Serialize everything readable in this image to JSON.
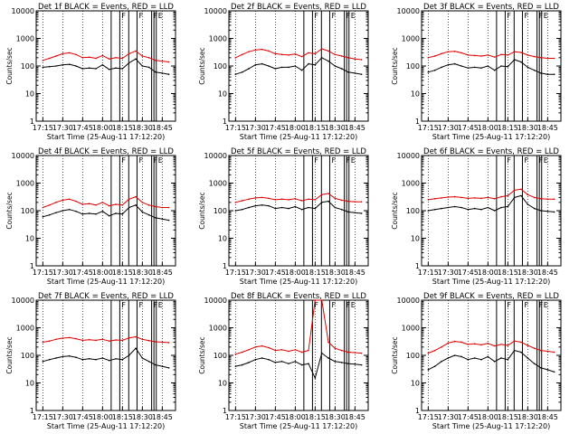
{
  "figure": {
    "colors": {
      "events": "#000000",
      "lld": "#dd0000",
      "axes": "#000000"
    }
  },
  "chart_data": [
    {
      "type": "line",
      "yscale": "log",
      "grid": "vertical dotted",
      "title": "Det 1f BLACK = Events, RED = LLD",
      "xlabel": "Start Time (25-Aug-11 17:12:20)",
      "ylabel": "Counts/sec",
      "xticks": [
        "17:15",
        "17:30",
        "17:45",
        "18:00",
        "18:15",
        "18:30",
        "18:45"
      ],
      "yticks": [
        "1",
        "10",
        "100",
        "1000",
        "10000"
      ],
      "xlim": [
        -2,
        40
      ],
      "ylim": [
        1,
        10000
      ],
      "vlines": [
        20.6,
        23.2,
        25.9,
        28.4,
        32.8,
        33.5,
        34.2
      ],
      "markers": [
        "F",
        "F",
        "F",
        "E"
      ],
      "x": [
        0,
        2,
        4,
        6,
        8,
        10,
        12,
        14,
        16,
        18,
        20,
        22,
        24,
        26,
        28,
        30,
        32,
        34,
        36,
        38
      ],
      "series": [
        {
          "name": "Events",
          "values": [
            90,
            95,
            100,
            110,
            115,
            100,
            80,
            85,
            80,
            110,
            75,
            85,
            80,
            130,
            180,
            100,
            90,
            60,
            55,
            50
          ]
        },
        {
          "name": "LLD",
          "values": [
            160,
            190,
            230,
            280,
            300,
            260,
            200,
            210,
            190,
            240,
            180,
            200,
            190,
            280,
            350,
            230,
            200,
            160,
            150,
            140
          ]
        }
      ]
    },
    {
      "type": "line",
      "yscale": "log",
      "grid": "vertical dotted",
      "title": "Det 2f BLACK = Events, RED = LLD",
      "xlabel": "Start Time (25-Aug-11 17:12:20)",
      "ylabel": "Counts/sec",
      "xticks": [
        "17:15",
        "17:30",
        "17:45",
        "18:00",
        "18:15",
        "18:30",
        "18:45"
      ],
      "yticks": [
        "1",
        "10",
        "100",
        "1000",
        "10000"
      ],
      "xlim": [
        -2,
        40
      ],
      "ylim": [
        1,
        10000
      ],
      "vlines": [
        20.6,
        23.2,
        25.9,
        28.4,
        32.8,
        33.5,
        34.2
      ],
      "markers": [
        "F",
        "F",
        "F",
        "E"
      ],
      "x": [
        0,
        2,
        4,
        6,
        8,
        10,
        12,
        14,
        16,
        18,
        20,
        22,
        24,
        26,
        28,
        30,
        32,
        34,
        36,
        38
      ],
      "series": [
        {
          "name": "Events",
          "values": [
            50,
            60,
            80,
            110,
            120,
            100,
            80,
            90,
            90,
            100,
            70,
            120,
            110,
            200,
            150,
            100,
            80,
            60,
            55,
            50
          ]
        },
        {
          "name": "LLD",
          "values": [
            200,
            260,
            330,
            380,
            400,
            350,
            280,
            260,
            250,
            270,
            220,
            300,
            280,
            420,
            350,
            260,
            230,
            200,
            180,
            170
          ]
        }
      ]
    },
    {
      "type": "line",
      "yscale": "log",
      "grid": "vertical dotted",
      "title": "Det 3f BLACK = Events, RED = LLD",
      "xlabel": "Start Time (25-Aug-11 17:12:20)",
      "ylabel": "Counts/sec",
      "xticks": [
        "17:15",
        "17:30",
        "17:45",
        "18:00",
        "18:15",
        "18:30",
        "18:45"
      ],
      "yticks": [
        "1",
        "10",
        "100",
        "1000",
        "10000"
      ],
      "xlim": [
        -2,
        40
      ],
      "ylim": [
        1,
        10000
      ],
      "vlines": [
        20.6,
        23.2,
        25.9,
        28.4,
        32.8,
        33.5,
        34.2
      ],
      "markers": [
        "F",
        "F",
        "F",
        "E"
      ],
      "x": [
        0,
        2,
        4,
        6,
        8,
        10,
        12,
        14,
        16,
        18,
        20,
        22,
        24,
        26,
        28,
        30,
        32,
        34,
        36,
        38
      ],
      "series": [
        {
          "name": "Events",
          "values": [
            60,
            70,
            90,
            110,
            120,
            100,
            85,
            90,
            85,
            100,
            70,
            100,
            95,
            170,
            140,
            90,
            70,
            55,
            50,
            50
          ]
        },
        {
          "name": "LLD",
          "values": [
            200,
            230,
            280,
            330,
            340,
            300,
            250,
            240,
            230,
            250,
            210,
            260,
            250,
            330,
            310,
            250,
            220,
            200,
            190,
            190
          ]
        }
      ]
    },
    {
      "type": "line",
      "yscale": "log",
      "grid": "vertical dotted",
      "title": "Det 4f BLACK = Events, RED = LLD",
      "xlabel": "Start Time (25-Aug-11 17:12:20)",
      "ylabel": "Counts/sec",
      "xticks": [
        "17:15",
        "17:30",
        "17:45",
        "18:00",
        "18:15",
        "18:30",
        "18:45"
      ],
      "yticks": [
        "1",
        "10",
        "100",
        "1000",
        "10000"
      ],
      "xlim": [
        -2,
        40
      ],
      "ylim": [
        1,
        10000
      ],
      "vlines": [
        20.6,
        23.2,
        25.9,
        28.4,
        32.8,
        33.5,
        34.2
      ],
      "markers": [
        "F",
        "F",
        "F",
        "E"
      ],
      "x": [
        0,
        2,
        4,
        6,
        8,
        10,
        12,
        14,
        16,
        18,
        20,
        22,
        24,
        26,
        28,
        30,
        32,
        34,
        36,
        38
      ],
      "series": [
        {
          "name": "Events",
          "values": [
            60,
            70,
            85,
            100,
            110,
            95,
            75,
            80,
            75,
            95,
            65,
            80,
            75,
            130,
            160,
            90,
            70,
            55,
            50,
            45
          ]
        },
        {
          "name": "LLD",
          "values": [
            130,
            160,
            200,
            240,
            260,
            220,
            170,
            180,
            160,
            200,
            150,
            170,
            160,
            260,
            320,
            200,
            160,
            140,
            130,
            130
          ]
        }
      ]
    },
    {
      "type": "line",
      "yscale": "log",
      "grid": "vertical dotted",
      "title": "Det 5f BLACK = Events, RED = LLD",
      "xlabel": "Start Time (25-Aug-11 17:12:20)",
      "ylabel": "Counts/sec",
      "xticks": [
        "17:15",
        "17:30",
        "17:45",
        "18:00",
        "18:15",
        "18:30",
        "18:45"
      ],
      "yticks": [
        "1",
        "10",
        "100",
        "1000",
        "10000"
      ],
      "xlim": [
        -2,
        40
      ],
      "ylim": [
        1,
        10000
      ],
      "vlines": [
        20.6,
        23.2,
        25.9,
        28.4,
        32.8,
        33.5,
        34.2
      ],
      "markers": [
        "F",
        "F",
        "F",
        "E"
      ],
      "x": [
        0,
        2,
        4,
        6,
        8,
        10,
        12,
        14,
        16,
        18,
        20,
        22,
        24,
        26,
        28,
        30,
        32,
        34,
        36,
        38
      ],
      "series": [
        {
          "name": "Events",
          "values": [
            100,
            110,
            130,
            150,
            160,
            150,
            120,
            130,
            120,
            140,
            110,
            130,
            120,
            200,
            220,
            130,
            110,
            90,
            85,
            80
          ]
        },
        {
          "name": "LLD",
          "values": [
            200,
            230,
            260,
            290,
            300,
            280,
            250,
            260,
            250,
            270,
            230,
            260,
            250,
            380,
            420,
            280,
            240,
            220,
            210,
            210
          ]
        }
      ]
    },
    {
      "type": "line",
      "yscale": "log",
      "grid": "vertical dotted",
      "title": "Det 6f BLACK = Events, RED = LLD",
      "xlabel": "Start Time (25-Aug-11 17:12:20)",
      "ylabel": "Counts/sec",
      "xticks": [
        "17:15",
        "17:30",
        "17:45",
        "18:00",
        "18:15",
        "18:30",
        "18:45"
      ],
      "yticks": [
        "1",
        "10",
        "100",
        "1000",
        "10000"
      ],
      "xlim": [
        -2,
        40
      ],
      "ylim": [
        1,
        10000
      ],
      "vlines": [
        20.6,
        23.2,
        25.9,
        28.4,
        32.8,
        33.5,
        34.2
      ],
      "markers": [
        "F",
        "F",
        "F",
        "E"
      ],
      "x": [
        0,
        2,
        4,
        6,
        8,
        10,
        12,
        14,
        16,
        18,
        20,
        22,
        24,
        26,
        28,
        30,
        32,
        34,
        36,
        38
      ],
      "series": [
        {
          "name": "Events",
          "values": [
            100,
            110,
            120,
            130,
            140,
            130,
            110,
            120,
            110,
            130,
            100,
            130,
            140,
            300,
            350,
            170,
            120,
            100,
            95,
            90
          ]
        },
        {
          "name": "LLD",
          "values": [
            250,
            270,
            290,
            310,
            320,
            300,
            280,
            290,
            280,
            300,
            270,
            320,
            350,
            550,
            600,
            380,
            300,
            270,
            260,
            260
          ]
        }
      ]
    },
    {
      "type": "line",
      "yscale": "log",
      "grid": "vertical dotted",
      "title": "Det 7f BLACK = Events, RED = LLD",
      "xlabel": "Start Time (25-Aug-11 17:12:20)",
      "ylabel": "Counts/sec",
      "xticks": [
        "17:15",
        "17:30",
        "17:45",
        "18:00",
        "18:15",
        "18:30",
        "18:45"
      ],
      "yticks": [
        "1",
        "10",
        "100",
        "1000",
        "10000"
      ],
      "xlim": [
        -2,
        40
      ],
      "ylim": [
        1,
        10000
      ],
      "vlines": [
        20.6,
        23.2,
        25.9,
        28.4,
        32.8,
        33.5,
        34.2
      ],
      "markers": [
        "F",
        "F",
        "F",
        "E"
      ],
      "x": [
        0,
        2,
        4,
        6,
        8,
        10,
        12,
        14,
        16,
        18,
        20,
        22,
        24,
        26,
        28,
        30,
        32,
        34,
        36,
        38
      ],
      "series": [
        {
          "name": "Events",
          "values": [
            60,
            70,
            80,
            90,
            95,
            85,
            70,
            75,
            70,
            80,
            65,
            75,
            70,
            100,
            180,
            80,
            60,
            45,
            40,
            35
          ]
        },
        {
          "name": "LLD",
          "values": [
            300,
            330,
            380,
            420,
            440,
            400,
            350,
            370,
            350,
            380,
            330,
            360,
            350,
            430,
            470,
            380,
            340,
            310,
            300,
            290
          ]
        }
      ]
    },
    {
      "type": "line",
      "yscale": "log",
      "grid": "vertical dotted",
      "title": "Det 8f BLACK = Events, RED = LLD",
      "xlabel": "Start Time (25-Aug-11 17:12:20)",
      "ylabel": "Counts/sec",
      "xticks": [
        "17:15",
        "17:30",
        "17:45",
        "18:00",
        "18:15",
        "18:30",
        "18:45"
      ],
      "yticks": [
        "1",
        "10",
        "100",
        "1000",
        "10000"
      ],
      "xlim": [
        -2,
        40
      ],
      "ylim": [
        1,
        10000
      ],
      "vlines": [
        20.6,
        23.2,
        25.9,
        28.4,
        32.8,
        33.5,
        34.2
      ],
      "markers": [
        "F",
        "F",
        "F",
        "E"
      ],
      "x": [
        0,
        2,
        4,
        6,
        8,
        10,
        12,
        14,
        16,
        18,
        20,
        22,
        24,
        26,
        28,
        30,
        32,
        34,
        36,
        38
      ],
      "series": [
        {
          "name": "Events",
          "values": [
            40,
            45,
            55,
            70,
            80,
            70,
            55,
            60,
            50,
            60,
            45,
            50,
            15,
            120,
            80,
            60,
            55,
            50,
            48,
            45
          ]
        },
        {
          "name": "LLD",
          "values": [
            110,
            130,
            160,
            200,
            220,
            190,
            150,
            160,
            140,
            160,
            130,
            150,
            10000,
            10000,
            300,
            180,
            150,
            130,
            125,
            120
          ]
        }
      ]
    },
    {
      "type": "line",
      "yscale": "log",
      "grid": "vertical dotted",
      "title": "Det 9f BLACK = Events, RED = LLD",
      "xlabel": "Start Time (25-Aug-11 17:12:20)",
      "ylabel": "Counts/sec",
      "xticks": [
        "17:15",
        "17:30",
        "17:45",
        "18:00",
        "18:15",
        "18:30",
        "18:45"
      ],
      "yticks": [
        "1",
        "10",
        "100",
        "1000",
        "10000"
      ],
      "xlim": [
        -2,
        40
      ],
      "ylim": [
        1,
        10000
      ],
      "vlines": [
        20.6,
        23.2,
        25.9,
        28.4,
        32.8,
        33.5,
        34.2
      ],
      "markers": [
        "F",
        "F",
        "F",
        "E"
      ],
      "x": [
        0,
        2,
        4,
        6,
        8,
        10,
        12,
        14,
        16,
        18,
        20,
        22,
        24,
        26,
        28,
        30,
        32,
        34,
        36,
        38
      ],
      "series": [
        {
          "name": "Events",
          "values": [
            30,
            40,
            60,
            80,
            100,
            90,
            70,
            80,
            70,
            90,
            60,
            80,
            70,
            150,
            130,
            80,
            50,
            35,
            30,
            25
          ]
        },
        {
          "name": "LLD",
          "values": [
            120,
            150,
            200,
            280,
            320,
            300,
            250,
            260,
            240,
            270,
            220,
            250,
            230,
            330,
            300,
            230,
            180,
            150,
            140,
            130
          ]
        }
      ]
    }
  ]
}
